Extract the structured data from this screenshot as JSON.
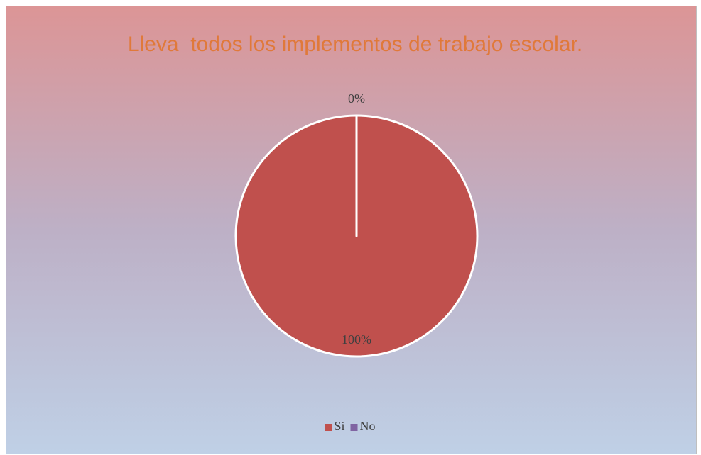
{
  "chart_data": {
    "type": "pie",
    "title": "Lleva  todos los implementos de trabajo escolar.",
    "categories": [
      "Si",
      "No"
    ],
    "values": [
      100,
      0
    ],
    "value_labels": [
      "100%",
      "0%"
    ],
    "colors": [
      "#c0504d",
      "#8064a2"
    ],
    "legend": "bottom"
  }
}
